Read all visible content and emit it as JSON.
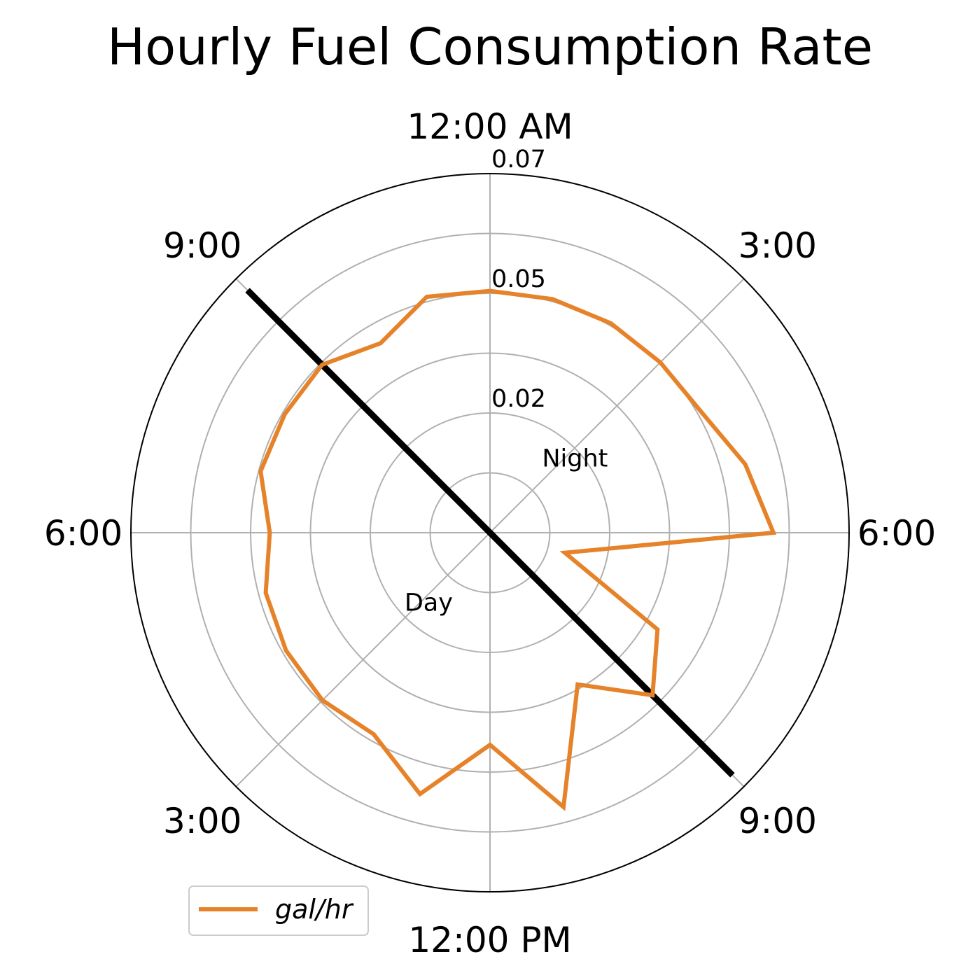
{
  "chart_data": {
    "type": "line",
    "projection": "polar",
    "title": "Hourly Fuel Consumption Rate",
    "theta_labels": [
      "12:00 AM",
      "3:00",
      "6:00",
      "9:00",
      "12:00 PM",
      "3:00",
      "6:00",
      "9:00"
    ],
    "r_ticks": [
      0.02,
      0.05,
      0.07
    ],
    "r_tick_labels": [
      "0.02",
      "0.05",
      "0.07"
    ],
    "rlim": [
      0,
      0.075
    ],
    "grid": true,
    "x": [
      0,
      1,
      2,
      3,
      4,
      5,
      6,
      7,
      8,
      9,
      10,
      11,
      12,
      13,
      14,
      15,
      16,
      17,
      18,
      19,
      20,
      21,
      22,
      23
    ],
    "series": [
      {
        "name": "gal/hr",
        "color": "#e6832a",
        "values": [
          0.0505,
          0.0505,
          0.0505,
          0.0503,
          0.0508,
          0.0552,
          0.0592,
          0.0162,
          0.0404,
          0.048,
          0.0366,
          0.0593,
          0.0443,
          0.0565,
          0.0486,
          0.0495,
          0.0492,
          0.0485,
          0.046,
          0.0496,
          0.0495,
          0.0496,
          0.0457,
          0.051
        ]
      }
    ],
    "divider": {
      "from_hour": 21,
      "to_hour": 9,
      "color": "#000000"
    },
    "regions": [
      {
        "label": "Night"
      },
      {
        "label": "Day"
      }
    ],
    "legend": {
      "placement": "lower-left",
      "entries": [
        "gal/hr"
      ]
    }
  }
}
